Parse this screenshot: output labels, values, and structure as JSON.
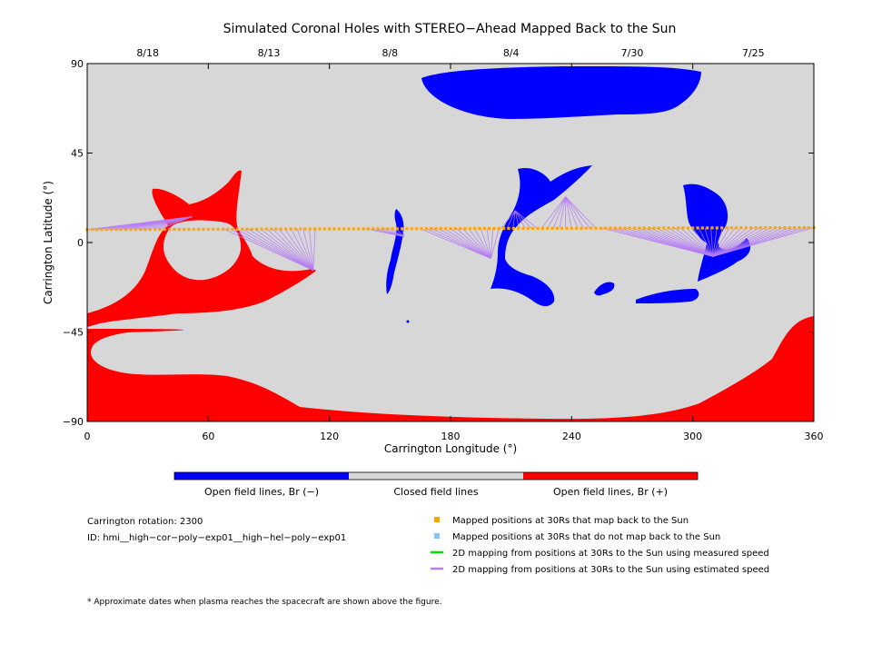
{
  "chart_data": {
    "type": "map",
    "title": "Simulated Coronal Holes with STEREO−Ahead Mapped Back to the Sun",
    "xlabel": "Carrington Longitude (°)",
    "ylabel": "Carrington Latitude (°)",
    "xlim": [
      0,
      360
    ],
    "ylim": [
      -90,
      90
    ],
    "x_ticks": [
      0,
      60,
      120,
      180,
      240,
      300,
      360
    ],
    "y_ticks": [
      90,
      45,
      0,
      -45,
      -90
    ],
    "y_tick_labels": [
      "90",
      "45",
      "0",
      "−45",
      "−90"
    ],
    "top_date_ticks": [
      {
        "label": "8/18",
        "lon": 30
      },
      {
        "label": "8/13",
        "lon": 90
      },
      {
        "label": "8/8",
        "lon": 150
      },
      {
        "label": "8/4",
        "lon": 210
      },
      {
        "label": "7/30",
        "lon": 270
      },
      {
        "label": "7/25",
        "lon": 330
      }
    ],
    "colors": {
      "background": "#d7d7d7",
      "open_negative": "#0000ff",
      "open_positive": "#ff0000",
      "mapped": "#ffa500",
      "not_mapped": "#87c1ff",
      "measured_speed": "#00dd00",
      "estimated_speed": "#b57cf5"
    },
    "colorbar": [
      {
        "label": "Open field lines, Br (−)",
        "color": "#0000ff"
      },
      {
        "label": "Closed field lines",
        "color": "#d7d7d7"
      },
      {
        "label": "Open field lines, Br (+)",
        "color": "#ff0000"
      }
    ],
    "mapped_track": {
      "lat_start": 6.5,
      "lat_end": 7.5,
      "lon_min": 0,
      "lon_max": 360
    },
    "mapping_fans": [
      {
        "foot": [
          52,
          13
        ],
        "from": [
          0,
          38
        ]
      },
      {
        "foot": [
          112,
          -14
        ],
        "from": [
          68,
          113
        ]
      },
      {
        "foot": [
          157,
          3
        ],
        "from": [
          138,
          158
        ]
      },
      {
        "foot": [
          200,
          -8
        ],
        "from": [
          165,
          206
        ]
      },
      {
        "foot": [
          212,
          16
        ],
        "from": [
          205,
          224
        ]
      },
      {
        "foot": [
          237,
          23
        ],
        "from": [
          225,
          253
        ]
      },
      {
        "foot": [
          310,
          -7
        ],
        "from": [
          255,
          360
        ]
      }
    ],
    "legend": [
      {
        "marker": "square",
        "color": "#ffa500",
        "label": "Mapped positions at 30Rs that map back to the Sun"
      },
      {
        "marker": "square",
        "color": "#87c1ff",
        "label": "Mapped positions at 30Rs that do not map back to the Sun"
      },
      {
        "marker": "line",
        "color": "#00dd00",
        "label": "2D mapping from positions at 30Rs to the Sun using measured speed"
      },
      {
        "marker": "line",
        "color": "#b57cf5",
        "label": "2D mapping from positions at 30Rs to the Sun using estimated speed"
      }
    ]
  },
  "info": {
    "rotation": "Carrington rotation: 2300",
    "id": "ID: hmi__high−cor−poly−exp01__high−hel−poly−exp01"
  },
  "footnote": "* Approximate dates when plasma reaches the spacecraft are shown above the figure."
}
